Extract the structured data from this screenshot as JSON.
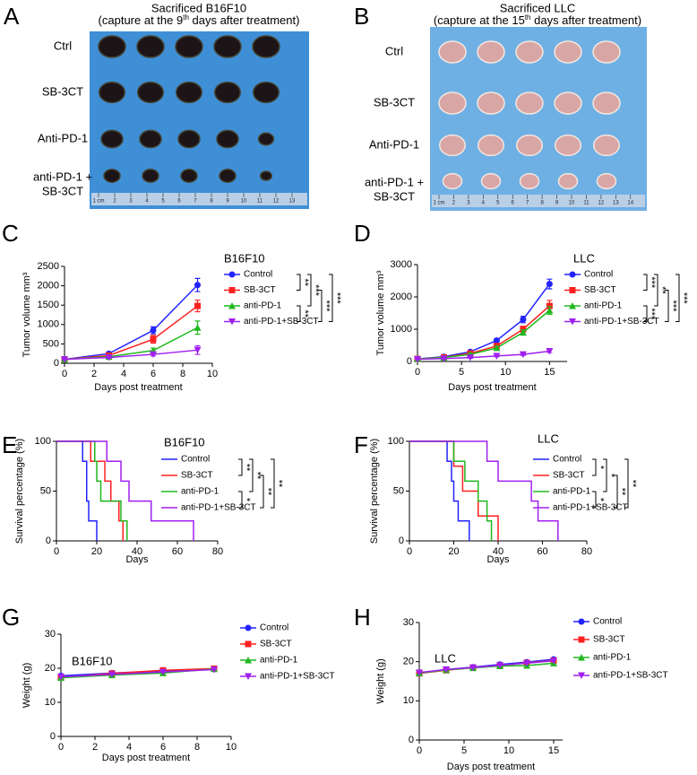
{
  "panels": [
    {
      "letter": "A",
      "title": "Sacrificed B16F10",
      "subtitle": [
        "(capture at the 9",
        "th",
        " days after treatment)"
      ],
      "row_labels": [
        [
          "Ctrl"
        ],
        [
          "SB-3CT"
        ],
        [
          "Anti-PD-1"
        ],
        [
          "anti-PD-1 +",
          "SB-3CT"
        ]
      ],
      "ruler_labels": [
        "1 cm",
        "2",
        "3",
        "4",
        "5",
        "6",
        "7",
        "8",
        "9",
        "10",
        "11",
        "12",
        "13"
      ]
    },
    {
      "letter": "B",
      "title": "Sacrificed LLC",
      "subtitle": [
        "(capture at the 15",
        "th",
        " days after treatment)"
      ],
      "row_labels": [
        [
          "Ctrl"
        ],
        [
          "SB-3CT"
        ],
        [
          "Anti-PD-1"
        ],
        [
          "anti-PD-1 +",
          "SB-3CT"
        ]
      ],
      "ruler_labels": [
        "1 cm",
        "2",
        "3",
        "4",
        "5",
        "6",
        "7",
        "8",
        "9",
        "10",
        "11",
        "12",
        "13",
        "14"
      ]
    }
  ],
  "chart_data": [
    {
      "type": "line",
      "panel": "C",
      "label": "B16F10",
      "x_label": "Days post treatment",
      "y_label": "Tumor volume mm³",
      "x": [
        0,
        3,
        6,
        9
      ],
      "xlim": [
        0,
        10
      ],
      "xticks": [
        0,
        2,
        4,
        6,
        8,
        10
      ],
      "ylim": [
        0,
        2500
      ],
      "yticks": [
        0,
        500,
        1000,
        1500,
        2000,
        2500
      ],
      "series": [
        {
          "name": "Control",
          "color": "#2323ff",
          "marker": "circle",
          "values": [
            100,
            250,
            850,
            2020
          ],
          "errors": [
            20,
            30,
            90,
            170
          ]
        },
        {
          "name": "SB-3CT",
          "color": "#ff2020",
          "marker": "square",
          "values": [
            100,
            200,
            620,
            1480
          ],
          "errors": [
            15,
            30,
            100,
            150
          ]
        },
        {
          "name": "anti-PD-1",
          "color": "#1fb81f",
          "marker": "triangle",
          "values": [
            100,
            170,
            330,
            920
          ],
          "errors": [
            15,
            20,
            60,
            170
          ]
        },
        {
          "name": "anti-PD-1+SB-3CT",
          "color": "#a020f0",
          "marker": "triangle-down",
          "values": [
            100,
            150,
            230,
            340
          ],
          "errors": [
            10,
            20,
            40,
            110
          ]
        }
      ],
      "significance": [
        "**",
        "***",
        "***",
        "**",
        "***"
      ]
    },
    {
      "type": "line",
      "panel": "D",
      "label": "LLC",
      "x_label": "Days post treatment",
      "y_label": "Tumor volume mm³",
      "x": [
        0,
        3,
        6,
        9,
        12,
        15
      ],
      "xlim": [
        0,
        17
      ],
      "xticks": [
        0,
        5,
        10,
        15
      ],
      "ylim": [
        0,
        3000
      ],
      "yticks": [
        0,
        1000,
        2000,
        3000
      ],
      "series": [
        {
          "name": "Control",
          "color": "#2323ff",
          "marker": "circle",
          "values": [
            80,
            150,
            300,
            650,
            1300,
            2400
          ],
          "errors": [
            10,
            20,
            40,
            60,
            100,
            150
          ]
        },
        {
          "name": "SB-3CT",
          "color": "#ff2020",
          "marker": "square",
          "values": [
            80,
            130,
            250,
            480,
            1000,
            1720
          ],
          "errors": [
            10,
            20,
            30,
            50,
            90,
            170
          ]
        },
        {
          "name": "anti-PD-1",
          "color": "#1fb81f",
          "marker": "triangle",
          "values": [
            80,
            120,
            220,
            420,
            900,
            1580
          ],
          "errors": [
            10,
            20,
            30,
            50,
            80,
            120
          ]
        },
        {
          "name": "anti-PD-1+SB-3CT",
          "color": "#a020f0",
          "marker": "triangle-down",
          "values": [
            70,
            90,
            120,
            170,
            220,
            320
          ],
          "errors": [
            10,
            10,
            20,
            20,
            30,
            40
          ]
        }
      ],
      "significance": [
        "***",
        "**",
        "***",
        "***",
        "***"
      ]
    },
    {
      "type": "line",
      "panel": "E",
      "label": "B16F10",
      "x_label": "Days",
      "y_label": "Survival percentage (%)",
      "markers": false,
      "xlim": [
        0,
        80
      ],
      "xticks": [
        0,
        20,
        40,
        60,
        80
      ],
      "ylim": [
        0,
        100
      ],
      "yticks": [
        0,
        50,
        100
      ],
      "series": [
        {
          "name": "Control",
          "color": "#2323ff",
          "x": [
            0,
            13,
            13,
            15,
            15,
            16,
            16,
            20,
            20
          ],
          "values": [
            100,
            100,
            80,
            80,
            40,
            40,
            20,
            20,
            0
          ]
        },
        {
          "name": "SB-3CT",
          "color": "#ff2020",
          "x": [
            0,
            17,
            17,
            24,
            24,
            27,
            27,
            31,
            31,
            33,
            33
          ],
          "values": [
            100,
            100,
            80,
            80,
            60,
            60,
            40,
            40,
            20,
            20,
            0
          ]
        },
        {
          "name": "anti-PD-1",
          "color": "#1fb81f",
          "x": [
            0,
            19,
            19,
            20,
            20,
            22,
            22,
            32,
            32,
            35,
            35
          ],
          "values": [
            100,
            100,
            80,
            80,
            60,
            60,
            40,
            40,
            20,
            20,
            0
          ]
        },
        {
          "name": "anti-PD-1+SB-3CT",
          "color": "#a020f0",
          "x": [
            0,
            25,
            25,
            32,
            32,
            36,
            36,
            47,
            47,
            68,
            68
          ],
          "values": [
            100,
            100,
            80,
            80,
            60,
            60,
            40,
            40,
            20,
            20,
            0
          ]
        }
      ],
      "significance": [
        "**",
        "**",
        "**",
        "*",
        "**"
      ]
    },
    {
      "type": "line",
      "panel": "F",
      "label": "LLC",
      "x_label": "Days",
      "y_label": "Survival percentage (%)",
      "markers": false,
      "xlim": [
        0,
        80
      ],
      "xticks": [
        0,
        20,
        40,
        60,
        80
      ],
      "ylim": [
        0,
        100
      ],
      "yticks": [
        0,
        50,
        100
      ],
      "series": [
        {
          "name": "Control",
          "color": "#2323ff",
          "x": [
            0,
            17,
            17,
            19,
            19,
            20,
            20,
            22,
            22,
            27,
            27
          ],
          "values": [
            100,
            100,
            80,
            80,
            60,
            60,
            40,
            40,
            20,
            20,
            0
          ]
        },
        {
          "name": "SB-3CT",
          "color": "#ff2020",
          "x": [
            0,
            20,
            20,
            24,
            24,
            31,
            31,
            40,
            40
          ],
          "values": [
            100,
            100,
            75,
            75,
            50,
            50,
            25,
            25,
            0
          ]
        },
        {
          "name": "anti-PD-1",
          "color": "#1fb81f",
          "x": [
            0,
            20,
            20,
            25,
            25,
            31,
            31,
            35,
            35,
            37,
            37
          ],
          "values": [
            100,
            100,
            80,
            80,
            60,
            60,
            40,
            40,
            20,
            20,
            0
          ]
        },
        {
          "name": "anti-PD-1+SB-3CT",
          "color": "#a020f0",
          "x": [
            0,
            35,
            35,
            40,
            40,
            55,
            55,
            58,
            58,
            67,
            67
          ],
          "values": [
            100,
            100,
            80,
            80,
            60,
            60,
            40,
            40,
            20,
            20,
            0
          ]
        }
      ],
      "significance": [
        "*",
        "*",
        "**",
        "*",
        "**"
      ]
    },
    {
      "type": "line",
      "panel": "G",
      "label": "B16F10",
      "x_label": "Days post treatment",
      "y_label": "Weight (g)",
      "x": [
        0,
        3,
        6,
        9
      ],
      "xlim": [
        0,
        10
      ],
      "xticks": [
        0,
        2,
        4,
        6,
        8,
        10
      ],
      "ylim": [
        0,
        30
      ],
      "yticks": [
        0,
        10,
        20,
        30
      ],
      "series": [
        {
          "name": "Control",
          "color": "#2323ff",
          "marker": "circle",
          "values": [
            17.8,
            18.6,
            19.2,
            19.8
          ]
        },
        {
          "name": "SB-3CT",
          "color": "#ff2020",
          "marker": "square",
          "values": [
            17.3,
            18.5,
            19.4,
            19.9
          ]
        },
        {
          "name": "anti-PD-1",
          "color": "#1fb81f",
          "marker": "triangle",
          "values": [
            17.2,
            18.0,
            18.6,
            19.8
          ]
        },
        {
          "name": "anti-PD-1+SB-3CT",
          "color": "#a020f0",
          "marker": "triangle-down",
          "values": [
            17.5,
            18.2,
            18.9,
            19.6
          ]
        }
      ]
    },
    {
      "type": "line",
      "panel": "H",
      "label": "LLC",
      "x_label": "Days post treatment",
      "y_label": "Weight (g)",
      "x": [
        0,
        3,
        6,
        9,
        12,
        15
      ],
      "xlim": [
        0,
        16
      ],
      "xticks": [
        0,
        5,
        10,
        15
      ],
      "ylim": [
        0,
        30
      ],
      "yticks": [
        0,
        10,
        20,
        30
      ],
      "series": [
        {
          "name": "Control",
          "color": "#2323ff",
          "marker": "circle",
          "values": [
            17.2,
            18.0,
            18.6,
            19.3,
            19.9,
            20.6
          ]
        },
        {
          "name": "SB-3CT",
          "color": "#ff2020",
          "marker": "square",
          "values": [
            17.0,
            17.8,
            18.5,
            19.0,
            19.7,
            20.3
          ]
        },
        {
          "name": "anti-PD-1",
          "color": "#1fb81f",
          "marker": "triangle",
          "values": [
            17.1,
            17.9,
            18.4,
            18.9,
            19.0,
            19.6
          ]
        },
        {
          "name": "anti-PD-1+SB-3CT",
          "color": "#a020f0",
          "marker": "triangle-down",
          "values": [
            17.2,
            18.0,
            18.5,
            19.1,
            19.6,
            20.2
          ]
        }
      ]
    }
  ]
}
